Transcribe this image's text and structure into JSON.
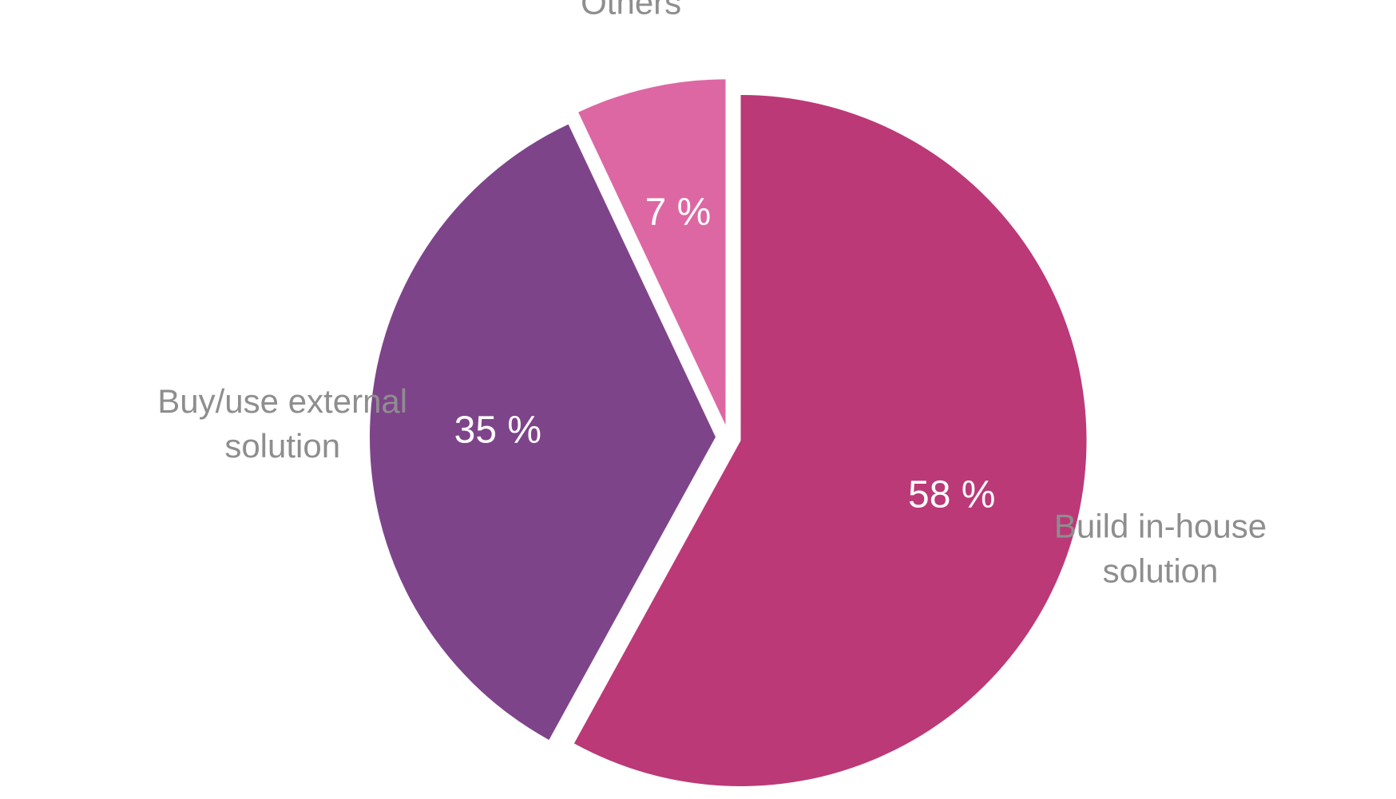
{
  "chart_data": {
    "type": "pie",
    "title": "",
    "slices": [
      {
        "label_lines": [
          "Build in-house",
          "solution"
        ],
        "value": 58,
        "value_label": "58 %",
        "color": "#bb3977"
      },
      {
        "label_lines": [
          "Buy/use external",
          "solution"
        ],
        "value": 35,
        "value_label": "35 %",
        "color": "#7e448a"
      },
      {
        "label_lines": [
          "Others"
        ],
        "value": 7,
        "value_label": "7 %",
        "color": "#dd67a3"
      }
    ],
    "start_angle": "12 o'clock",
    "direction": "clockwise",
    "exploded": true,
    "legend": "none (labels outside slices)"
  }
}
